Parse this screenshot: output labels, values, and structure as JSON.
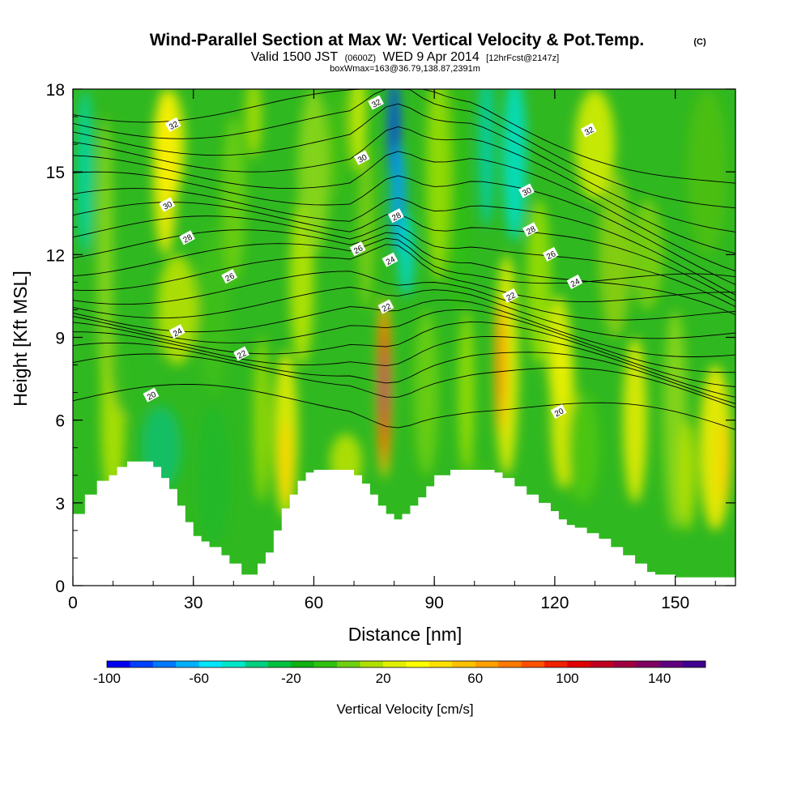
{
  "titles": {
    "title": "Wind-Parallel Section at Max W: Vertical Velocity & Pot.Temp.",
    "title_mark": "(C)",
    "valid_a": "Valid 1500 JST",
    "valid_b": "(0600Z)",
    "valid_c": "WED 9 Apr 2014",
    "valid_d": "[12hrFcst@2147z]",
    "box_info": "boxWmax=163@36.79,138.87,2391m"
  },
  "chart_data": {
    "type": "heatmap",
    "xlabel": "Distance [nm]",
    "ylabel": "Height [Kft MSL]",
    "xlim": [
      0,
      165
    ],
    "ylim": [
      0,
      18
    ],
    "x_ticks": [
      "0",
      "30",
      "60",
      "90",
      "120",
      "150"
    ],
    "y_ticks": [
      "0",
      "3",
      "6",
      "9",
      "12",
      "15",
      "18"
    ],
    "colorbar": {
      "label": "Vertical Velocity [cm/s]",
      "range": [
        -100,
        160
      ],
      "step": 10,
      "tick_labels": [
        "-100",
        "-60",
        "-20",
        "20",
        "60",
        "100",
        "140"
      ],
      "colors": [
        "#0000f0",
        "#0040ff",
        "#0078ff",
        "#00b0ff",
        "#00e6ff",
        "#00e6c8",
        "#00d080",
        "#00c040",
        "#10b010",
        "#30c010",
        "#70d010",
        "#b0e000",
        "#e0f000",
        "#ffff00",
        "#ffe000",
        "#ffc000",
        "#ffa000",
        "#ff7a00",
        "#ff5000",
        "#f02000",
        "#e00000",
        "#c00020",
        "#a00040",
        "#800060",
        "#600080",
        "#400090"
      ]
    },
    "terrain_kft": [
      [
        0,
        2.6
      ],
      [
        3,
        3.3
      ],
      [
        6,
        3.8
      ],
      [
        9,
        4.0
      ],
      [
        11,
        4.3
      ],
      [
        13.5,
        4.5
      ],
      [
        18.5,
        4.5
      ],
      [
        20,
        4.3
      ],
      [
        22,
        3.9
      ],
      [
        24,
        3.5
      ],
      [
        26,
        2.9
      ],
      [
        28,
        2.3
      ],
      [
        30,
        1.8
      ],
      [
        32,
        1.6
      ],
      [
        34,
        1.4
      ],
      [
        37,
        1.1
      ],
      [
        39,
        0.8
      ],
      [
        42,
        0.4
      ],
      [
        44,
        0.4
      ],
      [
        46,
        0.8
      ],
      [
        48,
        1.2
      ],
      [
        50,
        2.0
      ],
      [
        52,
        2.8
      ],
      [
        54,
        3.3
      ],
      [
        56,
        3.8
      ],
      [
        58,
        4.1
      ],
      [
        60,
        4.2
      ],
      [
        64,
        4.2
      ],
      [
        68,
        4.2
      ],
      [
        70,
        4.0
      ],
      [
        72,
        3.7
      ],
      [
        74,
        3.3
      ],
      [
        76,
        2.9
      ],
      [
        78,
        2.6
      ],
      [
        80,
        2.4
      ],
      [
        82,
        2.6
      ],
      [
        84,
        2.9
      ],
      [
        86,
        3.2
      ],
      [
        88,
        3.6
      ],
      [
        90,
        4.0
      ],
      [
        94,
        4.2
      ],
      [
        98,
        4.2
      ],
      [
        102,
        4.2
      ],
      [
        105,
        4.1
      ],
      [
        107,
        3.9
      ],
      [
        110,
        3.6
      ],
      [
        113,
        3.3
      ],
      [
        116,
        3.0
      ],
      [
        119,
        2.7
      ],
      [
        121,
        2.4
      ],
      [
        123,
        2.2
      ],
      [
        125,
        2.1
      ],
      [
        128,
        1.9
      ],
      [
        131,
        1.7
      ],
      [
        134,
        1.4
      ],
      [
        137,
        1.1
      ],
      [
        140,
        0.8
      ],
      [
        143,
        0.5
      ],
      [
        145,
        0.4
      ],
      [
        150,
        0.3
      ],
      [
        155,
        0.3
      ],
      [
        160,
        0.3
      ],
      [
        163,
        0.3
      ],
      [
        165,
        0.4
      ]
    ],
    "contour_labels": [
      {
        "x": 25,
        "y": 16.7,
        "text": "32"
      },
      {
        "x": 75.5,
        "y": 17.5,
        "text": "32"
      },
      {
        "x": 128.5,
        "y": 16.5,
        "text": "32"
      },
      {
        "x": 72,
        "y": 15.5,
        "text": "30"
      },
      {
        "x": 23.5,
        "y": 13.8,
        "text": "30"
      },
      {
        "x": 113,
        "y": 14.3,
        "text": "30"
      },
      {
        "x": 80.5,
        "y": 13.4,
        "text": "28"
      },
      {
        "x": 28.5,
        "y": 12.6,
        "text": "28"
      },
      {
        "x": 114,
        "y": 12.9,
        "text": "28"
      },
      {
        "x": 71,
        "y": 12.2,
        "text": "26"
      },
      {
        "x": 39,
        "y": 11.2,
        "text": "26"
      },
      {
        "x": 119,
        "y": 12.0,
        "text": "26"
      },
      {
        "x": 79,
        "y": 11.8,
        "text": "24"
      },
      {
        "x": 26,
        "y": 9.2,
        "text": "24"
      },
      {
        "x": 125,
        "y": 11.0,
        "text": "24"
      },
      {
        "x": 78,
        "y": 10.1,
        "text": "22"
      },
      {
        "x": 42,
        "y": 8.4,
        "text": "22"
      },
      {
        "x": 109,
        "y": 10.5,
        "text": "22"
      },
      {
        "x": 19.5,
        "y": 6.9,
        "text": "20"
      },
      {
        "x": 121,
        "y": 6.3,
        "text": "20"
      }
    ]
  }
}
